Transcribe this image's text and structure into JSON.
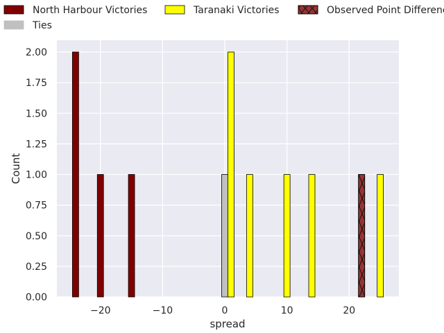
{
  "chart_data": {
    "type": "bar",
    "xlabel": "spread",
    "ylabel": "Count",
    "xlim": [
      -27,
      28
    ],
    "ylim": [
      0,
      2.0
    ],
    "x_ticks": [
      -20,
      -10,
      0,
      10,
      20
    ],
    "x_tick_labels": [
      "−20",
      "−10",
      "0",
      "10",
      "20"
    ],
    "y_ticks": [
      0,
      0.25,
      0.5,
      0.75,
      1.0,
      1.25,
      1.5,
      1.75,
      2.0
    ],
    "y_tick_labels": [
      "0.00",
      "0.25",
      "0.50",
      "0.75",
      "1.00",
      "1.25",
      "1.50",
      "1.75",
      "2.00"
    ],
    "bin_width": 1,
    "grid": true,
    "legend_position": "top",
    "series": [
      {
        "name": "North Harbour Victories",
        "color": "#800000",
        "hatch": false,
        "bars": [
          {
            "x": -24,
            "count": 2
          },
          {
            "x": -20,
            "count": 1
          },
          {
            "x": -15,
            "count": 1
          }
        ]
      },
      {
        "name": "Ties",
        "color": "#c0c0c0",
        "hatch": false,
        "bars": [
          {
            "x": 0,
            "count": 1
          }
        ]
      },
      {
        "name": "Taranaki Victories",
        "color": "#ffff00",
        "hatch": false,
        "bars": [
          {
            "x": 1,
            "count": 2
          },
          {
            "x": 4,
            "count": 1
          },
          {
            "x": 10,
            "count": 1
          },
          {
            "x": 14,
            "count": 1
          },
          {
            "x": 25,
            "count": 1
          }
        ]
      },
      {
        "name": "Observed Point Difference",
        "color": "#993333",
        "hatch": true,
        "bars": [
          {
            "x": 22,
            "count": 1
          }
        ]
      }
    ],
    "legend": [
      {
        "series": 0,
        "row": 0,
        "col": 0
      },
      {
        "series": 2,
        "row": 0,
        "col": 1
      },
      {
        "series": 3,
        "row": 0,
        "col": 2
      },
      {
        "series": 1,
        "row": 1,
        "col": 0
      }
    ]
  }
}
